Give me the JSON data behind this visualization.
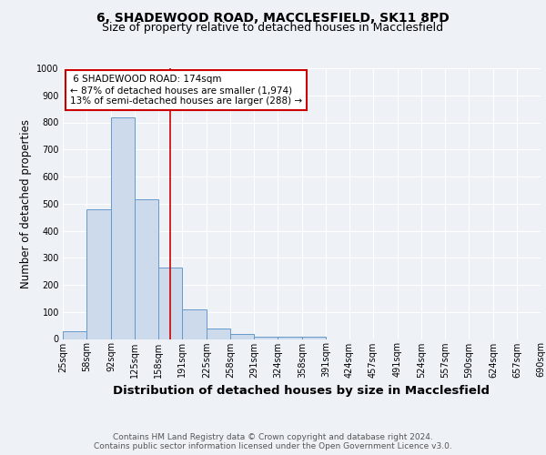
{
  "title_line1": "6, SHADEWOOD ROAD, MACCLESFIELD, SK11 8PD",
  "title_line2": "Size of property relative to detached houses in Macclesfield",
  "xlabel": "Distribution of detached houses by size in Macclesfield",
  "ylabel": "Number of detached properties",
  "footnote": "Contains HM Land Registry data © Crown copyright and database right 2024.\nContains public sector information licensed under the Open Government Licence v3.0.",
  "bin_edges": [
    25,
    58,
    92,
    125,
    158,
    191,
    225,
    258,
    291,
    324,
    358,
    391,
    424,
    457,
    491,
    524,
    557,
    590,
    624,
    657,
    690
  ],
  "bar_heights": [
    30,
    480,
    820,
    515,
    265,
    110,
    38,
    20,
    10,
    8,
    7,
    0,
    0,
    0,
    0,
    0,
    0,
    0,
    0,
    0
  ],
  "bar_color": "#ccdaeb",
  "bar_edge_color": "#6699cc",
  "property_size": 174,
  "vline_color": "#cc0000",
  "annotation_text": " 6 SHADEWOOD ROAD: 174sqm\n← 87% of detached houses are smaller (1,974)\n13% of semi-detached houses are larger (288) →",
  "annotation_box_color": "#cc0000",
  "ylim": [
    0,
    1000
  ],
  "yticks": [
    0,
    100,
    200,
    300,
    400,
    500,
    600,
    700,
    800,
    900,
    1000
  ],
  "background_color": "#eef2f7",
  "plot_bg_color": "#eef2f7",
  "grid_color": "#ffffff",
  "title_fontsize": 10,
  "subtitle_fontsize": 9,
  "axis_label_fontsize": 8.5,
  "tick_fontsize": 7,
  "annotation_fontsize": 7.5,
  "footnote_fontsize": 6.5
}
